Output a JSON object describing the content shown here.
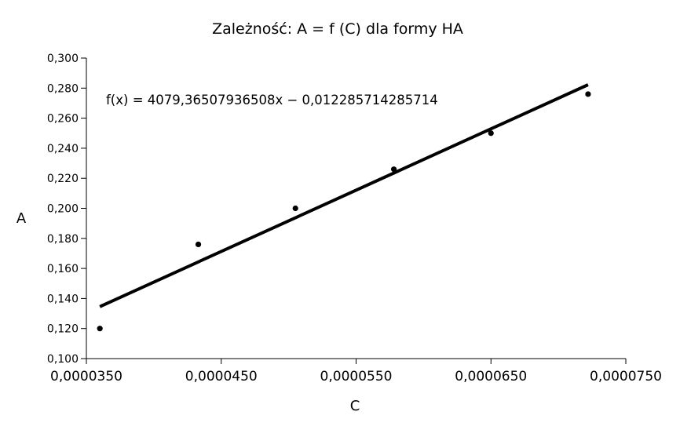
{
  "chart_data": {
    "type": "scatter",
    "title": "Zależność: A = f (C) dla formy HA",
    "xlabel": "C",
    "ylabel": "A",
    "xlim": [
      3.5e-05,
      7.5e-05
    ],
    "ylim": [
      0.1,
      0.3
    ],
    "x_ticks": [
      3.5e-05,
      4.5e-05,
      5.5e-05,
      6.5e-05,
      7.5e-05
    ],
    "x_tick_labels": [
      "0,0000350",
      "0,0000450",
      "0,0000550",
      "0,0000650",
      "0,0000750"
    ],
    "y_ticks": [
      0.1,
      0.12,
      0.14,
      0.16,
      0.18,
      0.2,
      0.22,
      0.24,
      0.26,
      0.28,
      0.3
    ],
    "y_tick_labels": [
      "0,100",
      "0,120",
      "0,140",
      "0,160",
      "0,180",
      "0,200",
      "0,220",
      "0,240",
      "0,260",
      "0,280",
      "0,300"
    ],
    "grid": false,
    "legend": "none",
    "series": [
      {
        "x": [
          3.6e-05,
          4.33e-05,
          5.05e-05,
          5.78e-05,
          6.5e-05,
          7.22e-05
        ],
        "y": [
          0.12,
          0.176,
          0.2,
          0.226,
          0.25,
          0.276
        ]
      }
    ],
    "trendline": {
      "slope": 4079.36507936508,
      "intercept": -0.012285714285714,
      "x_range": [
        3.6e-05,
        7.22e-05
      ],
      "equation": "f(x) = 4079,36507936508x − 0,012285714285714"
    },
    "colors": {
      "marker": "#000000",
      "line": "#000000",
      "axis": "#000000"
    }
  }
}
